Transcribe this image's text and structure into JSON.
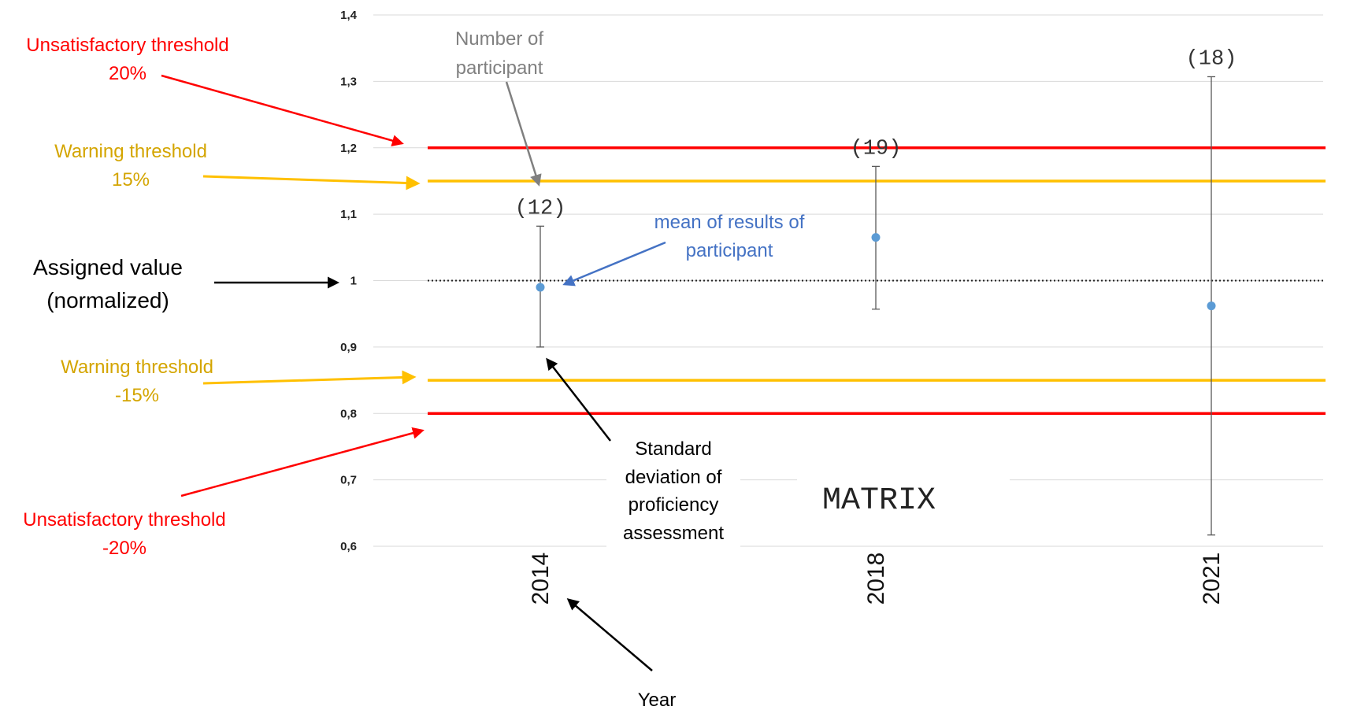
{
  "chart_data": {
    "type": "scatter",
    "title": "MATRIX",
    "xlabel": "",
    "ylabel": "",
    "categories": [
      "2014",
      "2018",
      "2021"
    ],
    "ylim": [
      0.6,
      1.4
    ],
    "yticks": [
      "0,6",
      "0,7",
      "0,8",
      "0,9",
      "1",
      "1,1",
      "1,2",
      "1,3",
      "1,4"
    ],
    "grid": true,
    "series": [
      {
        "values": [
          0.99,
          1.065,
          0.962
        ],
        "error_low": [
          0.9,
          0.957,
          0.617
        ],
        "error_high": [
          1.082,
          1.172,
          1.307
        ],
        "color": "#5b9bd5"
      }
    ],
    "participants": [
      "(12)",
      "(19)",
      "(18)"
    ],
    "reference_lines": [
      {
        "value": 1.2,
        "color": "#ff0000"
      },
      {
        "value": 1.15,
        "color": "#ffc000"
      },
      {
        "value": 1.0,
        "color": "#222222",
        "style": "dotted"
      },
      {
        "value": 0.85,
        "color": "#ffc000"
      },
      {
        "value": 0.8,
        "color": "#ff0000"
      }
    ]
  },
  "annotations": {
    "unsat_upper": {
      "line1": "Unsatisfactory threshold",
      "line2": "20%",
      "color": "#ff0000"
    },
    "warn_upper": {
      "line1": "Warning threshold",
      "line2": "15%",
      "color": "#d4a500"
    },
    "assigned": {
      "line1": "Assigned value",
      "line2": "(normalized)",
      "color": "#000000"
    },
    "warn_lower": {
      "line1": "Warning threshold",
      "line2": "-15%",
      "color": "#d4a500"
    },
    "unsat_lower": {
      "line1": "Unsatisfactory threshold",
      "line2": "-20%",
      "color": "#ff0000"
    },
    "participants_note": {
      "line1": "Number of",
      "line2": "participant",
      "color": "#808080"
    },
    "mean_note": {
      "line1": "mean of results of",
      "line2": "participant",
      "color": "#4472c4"
    },
    "sd_note": {
      "line1": "Standard",
      "line2": "deviation of",
      "line3": "proficiency",
      "line4": "assessment",
      "color": "#000000"
    },
    "year_note": {
      "text": "Year",
      "color": "#000000"
    }
  }
}
